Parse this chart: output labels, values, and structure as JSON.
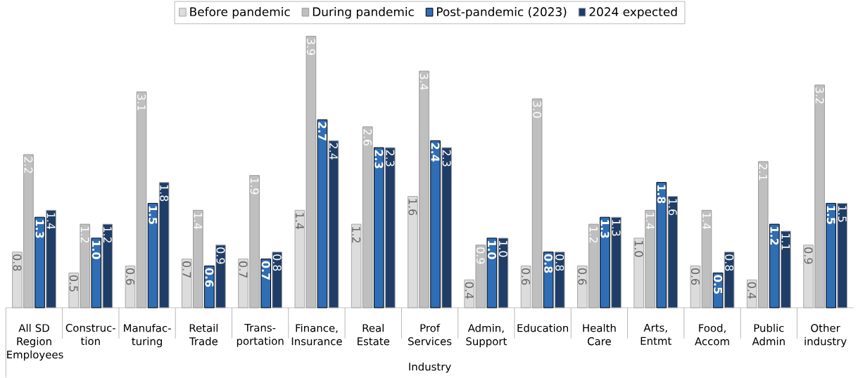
{
  "chart_data": {
    "type": "bar",
    "xlabel": "Industry",
    "legend": "top",
    "categories": [
      "All SD Region Employees",
      "Construc-tion",
      "Manufac-turing",
      "Retail Trade",
      "Trans-portation",
      "Finance, Insurance",
      "Real Estate",
      "Prof Services",
      "Admin, Support",
      "Education",
      "Health Care",
      "Arts, Entmt",
      "Food, Accom",
      "Public Admin",
      "Other industry"
    ],
    "series": [
      {
        "name": "Before pandemic",
        "color": "#dcdcdc",
        "values": [
          0.8,
          0.5,
          0.6,
          0.7,
          0.7,
          1.4,
          1.2,
          1.6,
          0.4,
          0.6,
          0.6,
          1.0,
          0.6,
          0.4,
          0.9
        ],
        "value_labels": [
          "0.8",
          "0.5",
          "0.6",
          "0.7",
          "0.7",
          "1.4",
          "1.2",
          "1.6",
          "0.4",
          "0.6",
          "0.6",
          "1.0",
          "0.6",
          "0.4",
          "0.9"
        ]
      },
      {
        "name": "During pandemic",
        "color": "#bfbfbf",
        "values": [
          2.2,
          1.2,
          3.1,
          1.4,
          1.9,
          3.9,
          2.6,
          3.4,
          0.9,
          3.0,
          1.2,
          1.4,
          1.4,
          2.1,
          3.2
        ],
        "value_labels": [
          "2.2",
          "1.2",
          "3.1",
          "1.4",
          "1.9",
          "3.9",
          "2.6",
          "3.4",
          "0.9",
          "3.0",
          "1.2",
          "1.4",
          "1.4",
          "2.1",
          "3.2"
        ]
      },
      {
        "name": "Post-pandemic (2023)",
        "color": "#2f6db5",
        "values": [
          1.3,
          1.0,
          1.5,
          0.6,
          0.7,
          2.7,
          2.3,
          2.4,
          1.0,
          0.8,
          1.3,
          1.8,
          0.5,
          1.2,
          1.5
        ],
        "value_labels": [
          "1.3",
          "1.0",
          "1.5",
          "0.6",
          "0.7",
          "2.7",
          "2.3",
          "2.4",
          "1.0",
          "0.8",
          "1.3",
          "1.8",
          "0.5",
          "1.2",
          "1.5"
        ]
      },
      {
        "name": "2024 expected",
        "color": "#1f3d66",
        "values": [
          1.4,
          1.2,
          1.8,
          0.9,
          0.8,
          2.4,
          2.3,
          2.3,
          1.0,
          0.8,
          1.3,
          1.6,
          0.8,
          1.1,
          1.5
        ],
        "value_labels": [
          "1.4",
          "1.2",
          "1.8",
          "0.9",
          "0.8",
          "2.4",
          "2.3",
          "2.3",
          "1.0",
          "0.8",
          "1.3",
          "1.6",
          "0.8",
          "1.1",
          "1.5"
        ]
      }
    ]
  }
}
